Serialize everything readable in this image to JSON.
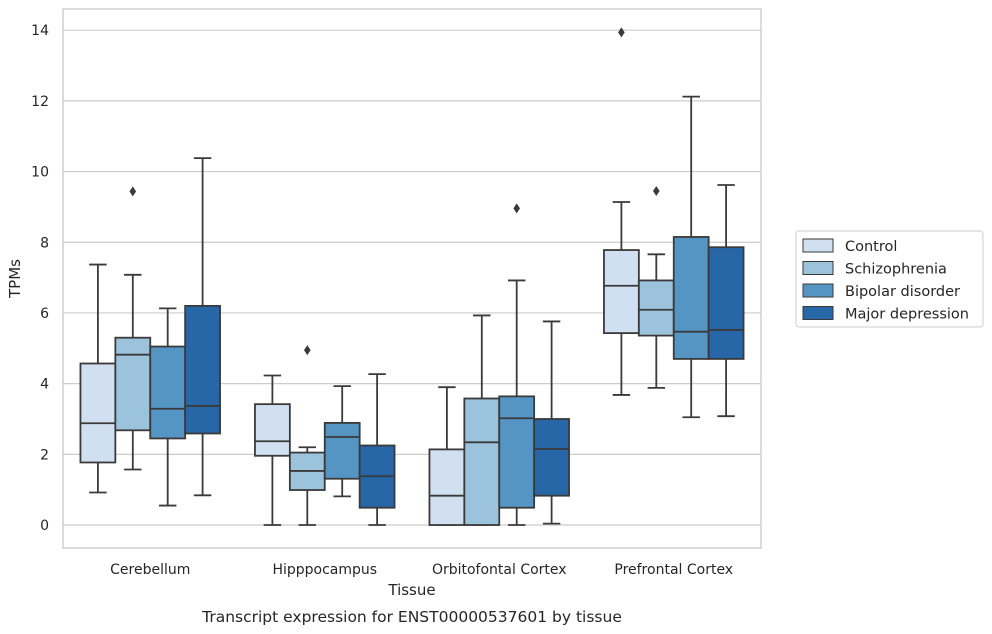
{
  "caption": "Transcript expression for ENST00000537601 by tissue",
  "chart_data": {
    "type": "boxplot",
    "title": "",
    "xlabel": "Tissue",
    "ylabel": "TPMs",
    "categories": [
      "Cerebellum",
      "Hipppocampus",
      "Orbitofontal Cortex",
      "Prefrontal Cortex"
    ],
    "ylim": [
      -0.65,
      14.6
    ],
    "yticks": [
      0,
      2,
      4,
      6,
      8,
      10,
      12,
      14
    ],
    "grid": "horizontal",
    "legend_position": "right",
    "series": [
      {
        "name": "Control",
        "color": "#d1e0f0",
        "boxes": [
          {
            "whisker_low": 0.92,
            "q1": 1.77,
            "median": 2.88,
            "q3": 4.57,
            "whisker_high": 7.37,
            "outliers": []
          },
          {
            "whisker_low": 0.0,
            "q1": 1.96,
            "median": 2.37,
            "q3": 3.42,
            "whisker_high": 4.23,
            "outliers": []
          },
          {
            "whisker_low": 0.0,
            "q1": 0.0,
            "median": 0.83,
            "q3": 2.14,
            "whisker_high": 3.9,
            "outliers": []
          },
          {
            "whisker_low": 3.68,
            "q1": 5.43,
            "median": 6.77,
            "q3": 7.78,
            "whisker_high": 9.14,
            "outliers": [
              13.94
            ]
          }
        ]
      },
      {
        "name": "Schizophrenia",
        "color": "#9cc3dc",
        "boxes": [
          {
            "whisker_low": 1.57,
            "q1": 2.68,
            "median": 4.82,
            "q3": 5.3,
            "whisker_high": 7.08,
            "outliers": [
              9.44
            ]
          },
          {
            "whisker_low": 0.0,
            "q1": 0.99,
            "median": 1.53,
            "q3": 2.05,
            "whisker_high": 2.2,
            "outliers": [
              4.95
            ]
          },
          {
            "whisker_low": 0.0,
            "q1": 0.0,
            "median": 2.34,
            "q3": 3.58,
            "whisker_high": 5.93,
            "outliers": []
          },
          {
            "whisker_low": 3.88,
            "q1": 5.36,
            "median": 6.09,
            "q3": 6.92,
            "whisker_high": 7.66,
            "outliers": [
              9.45
            ]
          }
        ]
      },
      {
        "name": "Bipolar disorder",
        "color": "#5595c4",
        "boxes": [
          {
            "whisker_low": 0.55,
            "q1": 2.45,
            "median": 3.29,
            "q3": 5.05,
            "whisker_high": 6.13,
            "outliers": []
          },
          {
            "whisker_low": 0.81,
            "q1": 1.31,
            "median": 2.49,
            "q3": 2.89,
            "whisker_high": 3.93,
            "outliers": []
          },
          {
            "whisker_low": 0.0,
            "q1": 0.49,
            "median": 3.02,
            "q3": 3.64,
            "whisker_high": 6.92,
            "outliers": [
              8.96
            ]
          },
          {
            "whisker_low": 3.05,
            "q1": 4.7,
            "median": 5.47,
            "q3": 8.15,
            "whisker_high": 12.12,
            "outliers": []
          }
        ]
      },
      {
        "name": "Major depression",
        "color": "#2767a8",
        "boxes": [
          {
            "whisker_low": 0.84,
            "q1": 2.59,
            "median": 3.37,
            "q3": 6.2,
            "whisker_high": 10.38,
            "outliers": []
          },
          {
            "whisker_low": 0.0,
            "q1": 0.49,
            "median": 1.38,
            "q3": 2.25,
            "whisker_high": 4.27,
            "outliers": []
          },
          {
            "whisker_low": 0.04,
            "q1": 0.83,
            "median": 2.15,
            "q3": 3.0,
            "whisker_high": 5.76,
            "outliers": []
          },
          {
            "whisker_low": 3.08,
            "q1": 4.7,
            "median": 5.52,
            "q3": 7.86,
            "whisker_high": 9.62,
            "outliers": []
          }
        ]
      }
    ]
  }
}
